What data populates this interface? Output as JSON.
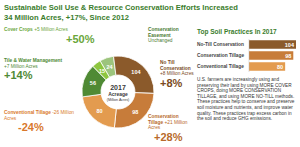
{
  "header": {
    "title": "Sustainable Soil Use & Resource Conservation Efforts Increased",
    "subtitle": "34 Million Acres, +17%, Since 2012"
  },
  "chart_data": [
    {
      "type": "pie",
      "title": "2017",
      "subtitle": "Acreage",
      "unit_label": "(Million Acres)",
      "categories": [
        "Conservation Easement",
        "No Till Conservation",
        "Conservation Tillage",
        "Conventional Tillage",
        "Tile & Water Management",
        "Cover Crops"
      ],
      "values": [
        24,
        104,
        98,
        80,
        56,
        15
      ],
      "colors": [
        "#9cc47c",
        "#8b5a2b",
        "#c77c3a",
        "#e39b4f",
        "#4f8a34",
        "#8dc63f"
      ],
      "data_labels": true,
      "changes": [
        "Unchanged",
        "+8 Million Acres",
        "+21 Million Acres",
        "-26 Million Acres",
        "+7 Million Acres",
        "+5 Million Acres"
      ],
      "change_percents": [
        null,
        "+8%",
        "+28%",
        "-24%",
        "+14%",
        "+50%"
      ]
    },
    {
      "type": "bar",
      "orientation": "horizontal",
      "title": "Top Soil Practices In 2017",
      "categories": [
        "No-Till Conservation",
        "Conservation Tillage",
        "Conventional Tillage"
      ],
      "values": [
        104,
        98,
        80
      ],
      "colors": [
        "#8b5a2b",
        "#c77c3a",
        "#e39b4f"
      ],
      "xlim": [
        0,
        104
      ],
      "data_labels": true,
      "tick_labels": "y"
    }
  ],
  "body": {
    "text": "U.S. farmers are increasingly using and preserving their land by using MORE COVER CROPS, doing MORE CONSERVATION TILLAGE, and using MORE NO-TILL methods. These practices help to conserve and preserve soil moisture and nutrients, and improve water quality. These practices trap excess carbon in the soil and reduce GHG emissions."
  }
}
